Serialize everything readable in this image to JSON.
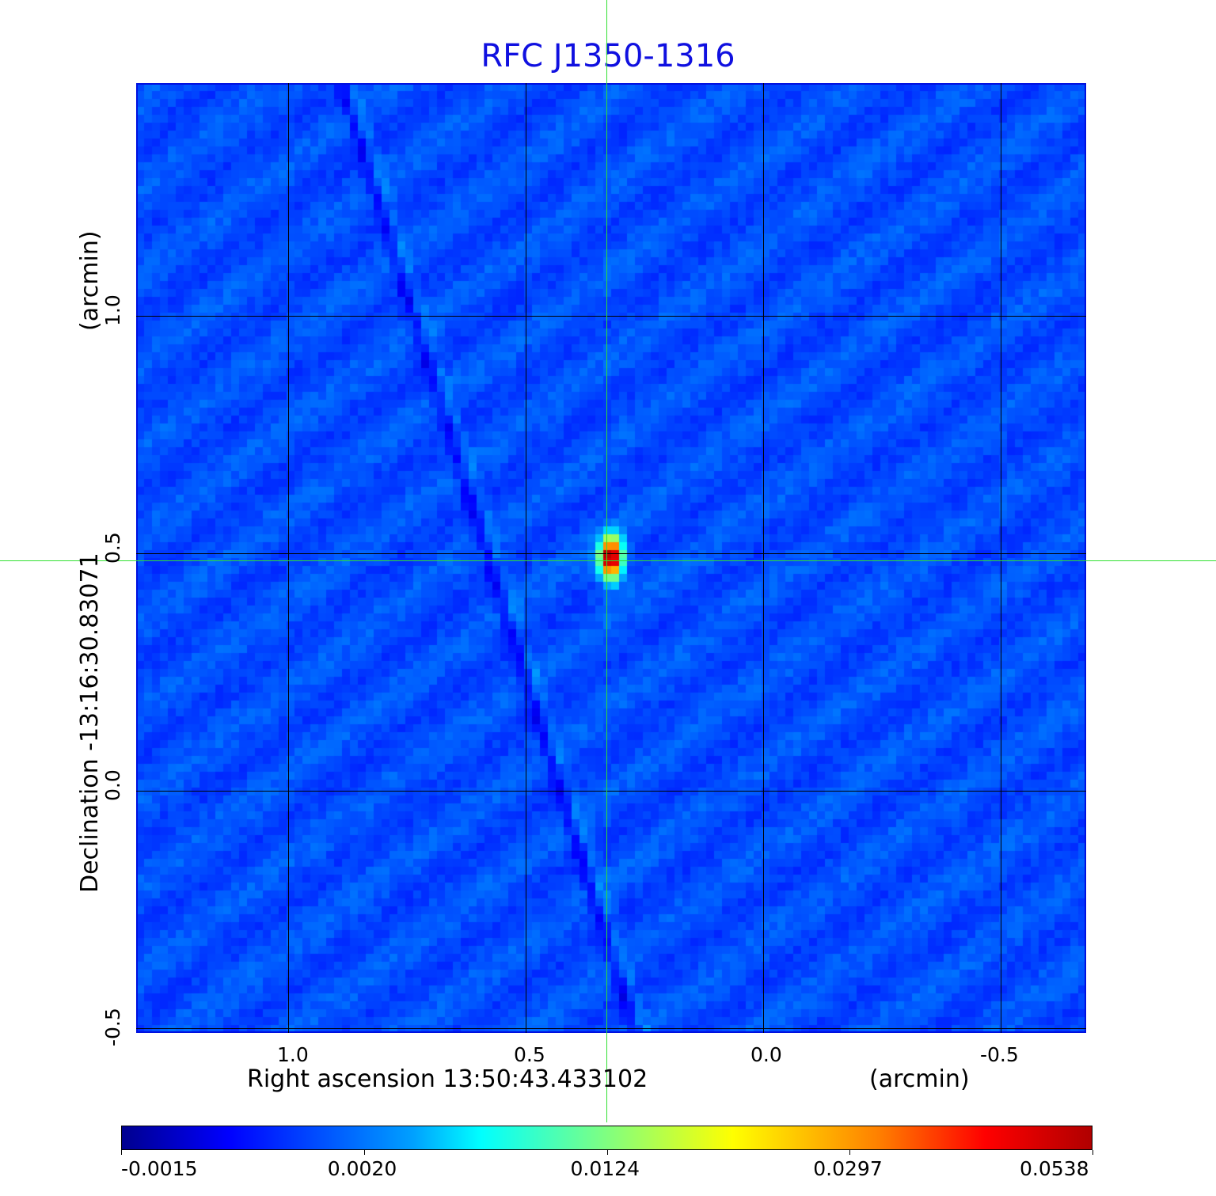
{
  "chart_data": {
    "type": "heatmap",
    "title": "RFC J1350-1316",
    "xlabel": "Right ascension  13:50:43.433102",
    "xunit": "(arcmin)",
    "ylabel": "Declination  -13:16:30.83071",
    "yunit": "(arcmin)",
    "xlim": [
      1.32,
      -0.68
    ],
    "ylim": [
      -0.51,
      1.49
    ],
    "x_ticks": [
      "1.0",
      "0.5",
      "0.0",
      "-0.5"
    ],
    "y_ticks": [
      "-0.5",
      "0.0",
      "0.5",
      "1.0"
    ],
    "grid": true,
    "colormap": "jet",
    "colorbar": {
      "ticks": [
        "-0.0015",
        "0.0020",
        "0.0124",
        "0.0297",
        "0.0538"
      ],
      "placement": "bottom"
    },
    "peak": {
      "x": 0.32,
      "y": 0.49,
      "value": 0.0538
    },
    "crosshair": {
      "x": 0.32,
      "y": 0.49,
      "color": "#30e030"
    }
  }
}
